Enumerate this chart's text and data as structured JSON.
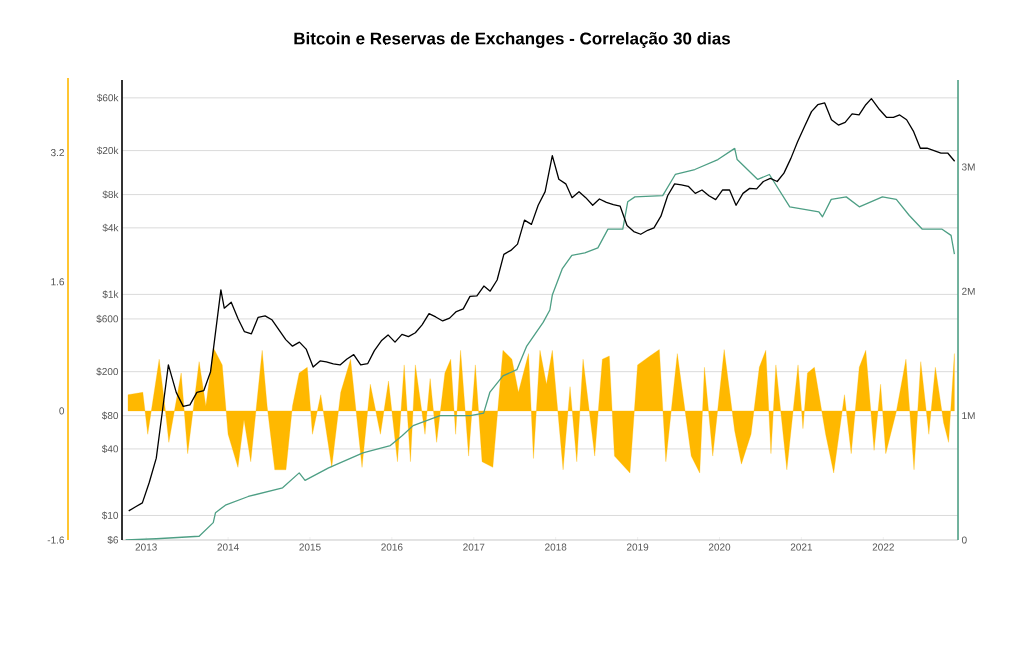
{
  "chart_data": {
    "type": "line",
    "title": "Bitcoin e Reservas de Exchanges - Correlação 30 dias",
    "xlim": [
      "2012-09-15",
      "2022-11-30"
    ],
    "xticks": [
      "2013",
      "2014",
      "2015",
      "2016",
      "2017",
      "2018",
      "2019",
      "2020",
      "2021",
      "2022"
    ],
    "ylim": [
      -1.6,
      4.1
    ],
    "yticks": [
      -1.6,
      0,
      1.6,
      3.2
    ],
    "y2lim": [
      6,
      87000
    ],
    "y2ticks": [
      {
        "value": 6,
        "label": "$6"
      },
      {
        "value": 10,
        "label": "$10"
      },
      {
        "value": 40,
        "label": "$40"
      },
      {
        "value": 80,
        "label": "$80"
      },
      {
        "value": 200,
        "label": "$200"
      },
      {
        "value": 600,
        "label": "$600"
      },
      {
        "value": 1000,
        "label": "$1k"
      },
      {
        "value": 4000,
        "label": "$4k"
      },
      {
        "value": 8000,
        "label": "$8k"
      },
      {
        "value": 20000,
        "label": "$20k"
      },
      {
        "value": 60000,
        "label": "$60k"
      }
    ],
    "y3lim": [
      0,
      3700000
    ],
    "y3ticks": [
      {
        "value": 0,
        "label": "0"
      },
      {
        "value": 1000000,
        "label": "1M"
      },
      {
        "value": 2000000,
        "label": "2M"
      },
      {
        "value": 3000000,
        "label": "3M"
      }
    ],
    "log": "y2",
    "grid": "y2",
    "series": [
      {
        "type": "area",
        "axis": "y",
        "color": "#ffb800",
        "x": [
          "2012-10-12",
          "2012-12-17",
          "2013-01-08",
          "2013-02-28",
          "2013-03-27",
          "2013-04-12",
          "2013-06-06",
          "2013-07-05",
          "2013-08-25",
          "2013-09-24",
          "2013-10-28",
          "2013-12-06",
          "2014-01-01",
          "2014-02-14",
          "2014-03-13",
          "2014-04-12",
          "2014-06-02",
          "2014-06-24",
          "2014-07-28",
          "2014-09-16",
          "2014-10-15",
          "2014-11-14",
          "2014-12-20",
          "2015-01-12",
          "2015-02-18",
          "2015-04-08",
          "2015-05-18",
          "2015-07-01",
          "2015-08-21",
          "2015-09-27",
          "2015-11-11",
          "2015-12-17",
          "2016-01-26",
          "2016-02-25",
          "2016-03-24",
          "2016-04-15",
          "2016-05-28",
          "2016-06-20",
          "2016-07-19",
          "2016-08-25",
          "2016-09-20",
          "2016-10-12",
          "2016-11-03",
          "2016-12-09",
          "2017-01-08",
          "2017-02-07",
          "2017-03-27",
          "2017-05-11",
          "2017-06-20",
          "2017-07-19",
          "2017-09-02",
          "2017-09-24",
          "2017-10-23",
          "2017-11-21",
          "2017-12-17",
          "2018-02-03",
          "2018-03-06",
          "2018-04-05",
          "2018-05-03",
          "2018-06-24",
          "2018-07-28",
          "2018-08-28",
          "2018-09-20",
          "2018-11-28",
          "2019-01-01",
          "2019-02-25",
          "2019-04-08",
          "2019-05-07",
          "2019-06-27",
          "2019-08-28",
          "2019-10-05",
          "2019-10-26",
          "2019-12-02",
          "2020-01-22",
          "2020-03-09",
          "2020-04-08",
          "2020-05-21",
          "2020-06-27",
          "2020-07-26",
          "2020-08-18",
          "2020-09-09",
          "2020-10-28",
          "2020-12-17",
          "2021-01-08",
          "2021-01-28",
          "2021-02-28",
          "2021-04-19",
          "2021-05-25",
          "2021-07-12",
          "2021-08-11",
          "2021-09-16",
          "2021-10-15",
          "2021-11-21",
          "2021-12-20",
          "2022-01-12",
          "2022-02-28",
          "2022-04-12",
          "2022-05-18",
          "2022-06-17",
          "2022-07-23",
          "2022-08-21",
          "2022-09-27",
          "2022-10-19",
          "2022-11-14"
        ],
        "values": [
          0.2,
          0.23,
          -0.29,
          0.64,
          0.02,
          -0.39,
          0.47,
          -0.53,
          0.61,
          0.06,
          0.78,
          0.57,
          -0.29,
          -0.7,
          -0.11,
          -0.63,
          0.75,
          0.06,
          -0.73,
          -0.73,
          0.06,
          0.47,
          0.54,
          -0.29,
          0.2,
          -0.7,
          0.23,
          0.64,
          -0.7,
          0.33,
          -0.29,
          0.37,
          -0.63,
          0.57,
          -0.63,
          0.57,
          -0.29,
          0.4,
          -0.39,
          0.47,
          0.64,
          -0.29,
          0.75,
          -0.56,
          0.57,
          -0.63,
          -0.7,
          0.75,
          0.64,
          0.23,
          0.71,
          -0.59,
          0.75,
          0.33,
          0.75,
          -0.73,
          0.3,
          -0.63,
          0.64,
          -0.56,
          0.64,
          0.68,
          -0.56,
          -0.77,
          0.57,
          0.68,
          0.76,
          -0.63,
          0.71,
          -0.56,
          -0.77,
          0.54,
          -0.56,
          0.76,
          -0.25,
          -0.66,
          -0.29,
          0.54,
          0.75,
          -0.53,
          0.57,
          -0.73,
          0.57,
          -0.22,
          0.47,
          0.54,
          -0.29,
          -0.77,
          0.2,
          -0.53,
          0.54,
          0.75,
          -0.49,
          0.33,
          -0.53,
          -0.01,
          0.64,
          -0.73,
          0.61,
          -0.29,
          0.54,
          -0.15,
          -0.39,
          0.71
        ]
      },
      {
        "axis": "y3",
        "color": "#4e9f85",
        "x": [
          "2012-10-01",
          "2013-02-15",
          "2013-08-25",
          "2013-10-27",
          "2013-11-06",
          "2013-12-20",
          "2014-04-01",
          "2014-09-01",
          "2014-11-14",
          "2014-12-10",
          "2015-03-25",
          "2015-08-25",
          "2015-12-25",
          "2016-02-17",
          "2016-04-05",
          "2016-08-03",
          "2016-12-17",
          "2017-02-14",
          "2017-03-14",
          "2017-05-11",
          "2017-07-12",
          "2017-08-25",
          "2017-11-06",
          "2017-12-06",
          "2017-12-17",
          "2018-01-30",
          "2018-03-14",
          "2018-05-11",
          "2018-07-08",
          "2018-08-22",
          "2018-10-27",
          "2018-11-18",
          "2018-12-20",
          "2019-04-23",
          "2019-06-18",
          "2019-09-13",
          "2019-12-25",
          "2020-03-09",
          "2020-03-20",
          "2020-06-20",
          "2020-08-11",
          "2020-11-10",
          "2021-03-20",
          "2021-04-05",
          "2021-05-14",
          "2021-07-20",
          "2021-09-16",
          "2021-12-28",
          "2022-02-28",
          "2022-04-27",
          "2022-06-24",
          "2022-09-20",
          "2022-10-30",
          "2022-11-14"
        ],
        "values": [
          0,
          10000,
          30000,
          140000,
          220000,
          280000,
          350000,
          420000,
          540000,
          480000,
          580000,
          700000,
          760000,
          840000,
          920000,
          1000000,
          1000000,
          1020000,
          1190000,
          1320000,
          1370000,
          1560000,
          1750000,
          1850000,
          1970000,
          2180000,
          2290000,
          2310000,
          2350000,
          2500000,
          2500000,
          2720000,
          2760000,
          2770000,
          2940000,
          2980000,
          3060000,
          3150000,
          3060000,
          2900000,
          2940000,
          2680000,
          2640000,
          2600000,
          2740000,
          2760000,
          2680000,
          2760000,
          2740000,
          2610000,
          2500000,
          2500000,
          2450000,
          2300000
        ]
      },
      {
        "axis": "y2",
        "color": "#000000",
        "x": [
          "2012-10-15",
          "2012-11-15",
          "2012-12-15",
          "2013-01-15",
          "2013-02-15",
          "2013-03-15",
          "2013-04-10",
          "2013-05-15",
          "2013-06-15",
          "2013-07-15",
          "2013-08-15",
          "2013-09-15",
          "2013-10-15",
          "2013-11-30",
          "2013-12-15",
          "2014-01-15",
          "2014-02-15",
          "2014-03-15",
          "2014-04-15",
          "2014-05-15",
          "2014-06-15",
          "2014-07-15",
          "2014-08-15",
          "2014-09-15",
          "2014-10-15",
          "2014-11-15",
          "2014-12-15",
          "2015-01-15",
          "2015-02-15",
          "2015-03-15",
          "2015-04-15",
          "2015-05-15",
          "2015-06-15",
          "2015-07-15",
          "2015-08-15",
          "2015-09-15",
          "2015-10-15",
          "2015-11-15",
          "2015-12-15",
          "2016-01-15",
          "2016-02-15",
          "2016-03-15",
          "2016-04-15",
          "2016-05-15",
          "2016-06-15",
          "2016-07-15",
          "2016-08-15",
          "2016-09-15",
          "2016-10-15",
          "2016-11-15",
          "2016-12-15",
          "2017-01-15",
          "2017-02-15",
          "2017-03-15",
          "2017-04-15",
          "2017-05-15",
          "2017-06-15",
          "2017-07-15",
          "2017-08-15",
          "2017-09-15",
          "2017-10-15",
          "2017-11-15",
          "2017-12-17",
          "2018-01-15",
          "2018-02-15",
          "2018-03-15",
          "2018-04-15",
          "2018-05-15",
          "2018-06-15",
          "2018-07-15",
          "2018-08-15",
          "2018-09-15",
          "2018-10-15",
          "2018-11-15",
          "2018-12-15",
          "2019-01-15",
          "2019-02-15",
          "2019-03-15",
          "2019-04-15",
          "2019-05-15",
          "2019-06-15",
          "2019-07-15",
          "2019-08-15",
          "2019-09-15",
          "2019-10-15",
          "2019-11-15",
          "2019-12-15",
          "2020-01-15",
          "2020-02-15",
          "2020-03-15",
          "2020-04-15",
          "2020-05-15",
          "2020-06-15",
          "2020-07-15",
          "2020-08-15",
          "2020-09-15",
          "2020-10-15",
          "2020-11-15",
          "2020-12-15",
          "2021-01-15",
          "2021-02-15",
          "2021-03-15",
          "2021-04-15",
          "2021-05-15",
          "2021-06-15",
          "2021-07-15",
          "2021-08-15",
          "2021-09-15",
          "2021-10-15",
          "2021-11-09",
          "2021-12-15",
          "2022-01-15",
          "2022-02-15",
          "2022-03-15",
          "2022-04-15",
          "2022-05-15",
          "2022-06-15",
          "2022-07-15",
          "2022-08-15",
          "2022-09-15",
          "2022-10-15",
          "2022-11-15"
        ],
        "values": [
          11,
          12,
          13,
          20,
          33,
          90,
          230,
          130,
          97,
          100,
          130,
          135,
          200,
          1100,
          750,
          850,
          600,
          460,
          440,
          620,
          640,
          590,
          480,
          390,
          340,
          370,
          320,
          220,
          250,
          245,
          235,
          230,
          260,
          285,
          230,
          236,
          310,
          380,
          430,
          370,
          435,
          415,
          450,
          530,
          670,
          625,
          575,
          610,
          700,
          740,
          960,
          970,
          1190,
          1070,
          1350,
          2300,
          2500,
          2850,
          4700,
          4300,
          6400,
          8500,
          18000,
          11000,
          10000,
          7500,
          8500,
          7500,
          6400,
          7300,
          6800,
          6500,
          6300,
          4200,
          3700,
          3500,
          3800,
          4000,
          5100,
          7800,
          10000,
          9800,
          9500,
          8200,
          8800,
          7800,
          7200,
          8800,
          8800,
          6400,
          8200,
          9100,
          9000,
          10500,
          11200,
          10500,
          12500,
          17000,
          24000,
          33000,
          45000,
          52000,
          54000,
          38000,
          34000,
          36000,
          43000,
          42000,
          52000,
          59000,
          47000,
          40000,
          40000,
          42000,
          38000,
          30000,
          21000,
          21000,
          20000,
          19000,
          19000,
          16000
        ]
      }
    ]
  }
}
